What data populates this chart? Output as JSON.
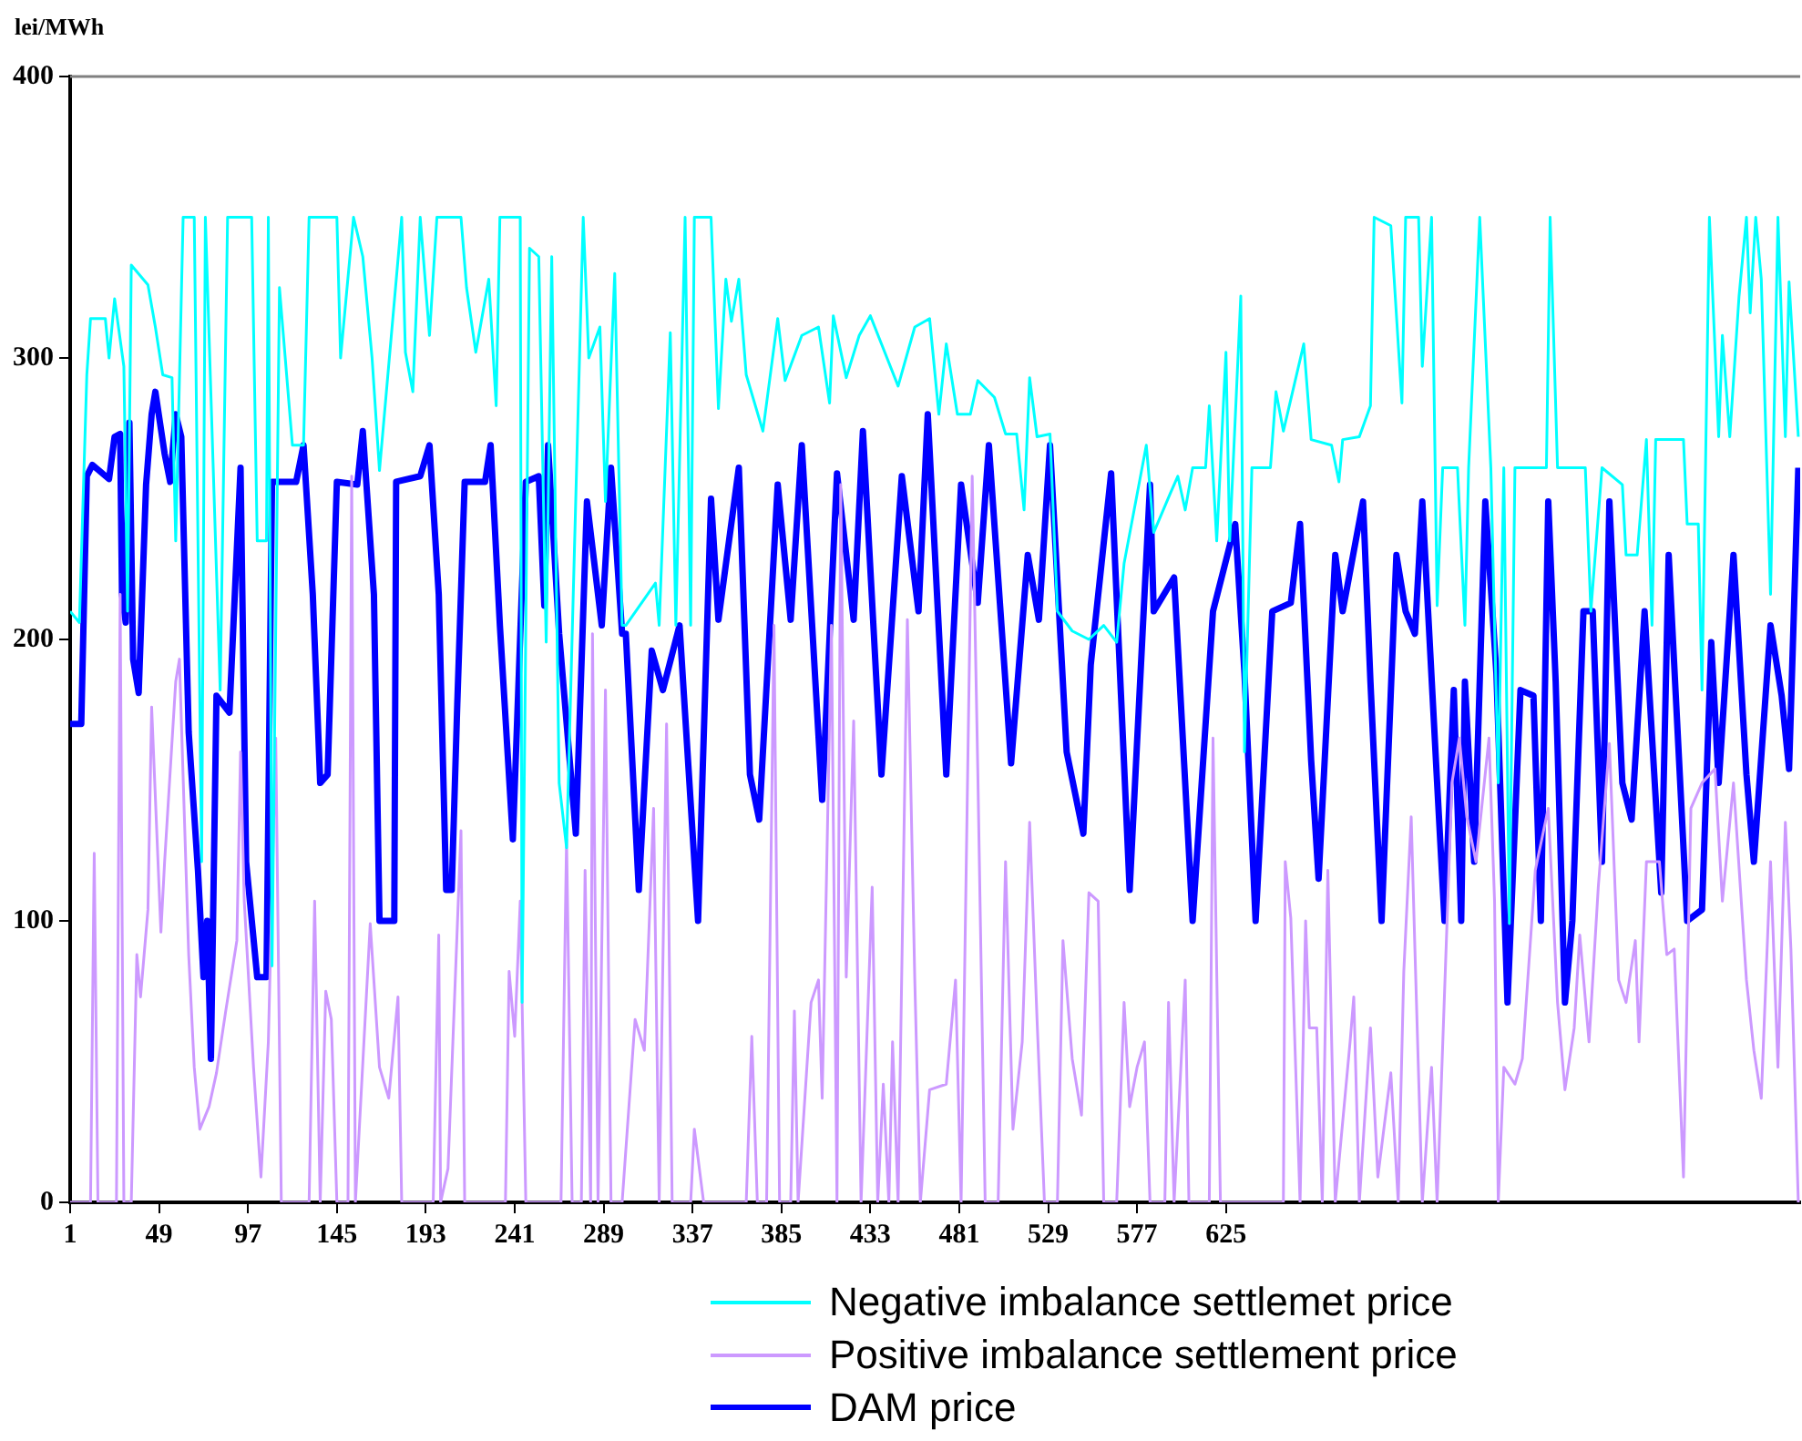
{
  "chart_data": {
    "type": "line",
    "ylabel": "lei/MWh",
    "xlim": [
      1,
      935
    ],
    "xticks": [
      1,
      49,
      97,
      145,
      193,
      241,
      289,
      337,
      385,
      433,
      481,
      529,
      577,
      625
    ],
    "ylim": [
      0,
      400
    ],
    "yticks": [
      0,
      100,
      200,
      300,
      400
    ],
    "grid": false,
    "legend": "bottom",
    "marker": "none",
    "line_style": "solid",
    "series": [
      {
        "name": "Negative imbalance settlemet price",
        "color": "#00ffff",
        "x": [
          1,
          6,
          10,
          12,
          20,
          22,
          25,
          30,
          32,
          34,
          43,
          47,
          51,
          56,
          58,
          62,
          68,
          72,
          74,
          82,
          86,
          99,
          102,
          107,
          108,
          110,
          114,
          121,
          127,
          130,
          145,
          147,
          154,
          159,
          164,
          168,
          180,
          182,
          186,
          190,
          195,
          199,
          212,
          215,
          220,
          227,
          231,
          233,
          244,
          245,
          249,
          254,
          258,
          261,
          265,
          269,
          278,
          281,
          287,
          290,
          295,
          299,
          301,
          317,
          319,
          325,
          328,
          333,
          336,
          338,
          347,
          349,
          351,
          355,
          358,
          362,
          366,
          375,
          383,
          387,
          396,
          405,
          411,
          413,
          420,
          427,
          433,
          439,
          448,
          457,
          465,
          470,
          474,
          480,
          487,
          491,
          500,
          506,
          512,
          516,
          519,
          523,
          530,
          534,
          542,
          551,
          559,
          566,
          570,
          582,
          586,
          595,
          599,
          603,
          607,
          614,
          616,
          620,
          625,
          627,
          633,
          635,
          639,
          649,
          652,
          656,
          667,
          671,
          682,
          686,
          688,
          697,
          703,
          705,
          714,
          720,
          722,
          729,
          731,
          736,
          739,
          742,
          750,
          754,
          756,
          762,
          768,
          772,
          775,
          778,
          781,
          798,
          800,
          804,
          819,
          822,
          828,
          839,
          841,
          847,
          852,
          855,
          857,
          872,
          874,
          880,
          882,
          886,
          891,
          893,
          897,
          902,
          906,
          908,
          911,
          914,
          919,
          923,
          927,
          929,
          934
        ],
        "values": [
          210,
          206,
          294,
          314,
          314,
          300,
          321,
          297,
          210,
          333,
          326,
          311,
          294,
          293,
          235,
          350,
          350,
          121,
          350,
          182,
          350,
          350,
          235,
          235,
          350,
          84,
          325,
          269,
          269,
          350,
          350,
          300,
          350,
          336,
          300,
          260,
          350,
          302,
          288,
          350,
          308,
          350,
          350,
          325,
          302,
          328,
          283,
          350,
          350,
          71,
          339,
          336,
          199,
          336,
          149,
          126,
          350,
          300,
          311,
          249,
          330,
          205,
          205,
          220,
          205,
          309,
          205,
          350,
          205,
          350,
          350,
          316,
          282,
          328,
          313,
          328,
          294,
          274,
          314,
          292,
          308,
          311,
          284,
          315,
          293,
          308,
          315,
          305,
          290,
          311,
          314,
          280,
          305,
          280,
          280,
          292,
          286,
          273,
          273,
          246,
          293,
          272,
          273,
          210,
          203,
          200,
          205,
          199,
          227,
          269,
          238,
          252,
          258,
          246,
          261,
          261,
          283,
          235,
          302,
          235,
          322,
          160,
          261,
          261,
          288,
          274,
          305,
          271,
          269,
          256,
          271,
          272,
          283,
          350,
          347,
          284,
          350,
          350,
          297,
          350,
          212,
          261,
          261,
          205,
          261,
          350,
          261,
          149,
          261,
          99,
          261,
          261,
          350,
          261,
          261,
          210,
          261,
          255,
          230,
          230,
          271,
          205,
          271,
          271,
          241,
          241,
          182,
          350,
          272,
          308,
          272,
          322,
          350,
          316,
          350,
          328,
          216,
          350,
          272,
          327,
          272
        ]
      },
      {
        "name": "Positive imbalance settlement price",
        "color": "#cc99ff",
        "x": [
          1,
          12,
          14,
          16,
          26,
          28,
          30,
          34,
          37,
          39,
          43,
          45,
          50,
          52,
          58,
          60,
          65,
          68,
          71,
          76,
          80,
          85,
          91,
          93,
          95,
          100,
          104,
          108,
          112,
          115,
          130,
          133,
          136,
          139,
          142,
          145,
          151,
          153,
          155,
          163,
          168,
          173,
          178,
          180,
          197,
          200,
          201,
          205,
          212,
          214,
          236,
          238,
          241,
          244,
          247,
          266,
          269,
          272,
          277,
          279,
          282,
          283,
          286,
          290,
          293,
          299,
          306,
          311,
          316,
          319,
          323,
          326,
          336,
          338,
          343,
          366,
          369,
          372,
          377,
          381,
          384,
          390,
          392,
          394,
          401,
          405,
          407,
          412,
          415,
          417,
          420,
          424,
          428,
          434,
          437,
          440,
          443,
          445,
          448,
          453,
          457,
          460,
          465,
          474,
          479,
          482,
          488,
          491,
          495,
          502,
          506,
          510,
          515,
          519,
          523,
          527,
          534,
          537,
          542,
          547,
          551,
          556,
          559,
          566,
          570,
          573,
          577,
          581,
          584,
          592,
          594,
          597,
          603,
          605,
          616,
          618,
          622,
          656,
          657,
          660,
          665,
          668,
          670,
          674,
          677,
          680,
          684,
          692,
          694,
          697,
          703,
          707,
          714,
          718,
          721,
          725,
          727,
          731,
          736,
          739,
          747,
          751,
          755,
          760,
          767,
          770,
          772,
          775,
          781,
          785,
          792,
          799,
          804,
          808,
          813,
          816,
          821,
          826,
          832,
          837,
          841,
          846,
          848,
          852,
          859,
          863,
          867,
          872,
          876,
          882,
          889,
          893,
          899,
          906,
          910,
          914,
          919,
          923,
          927,
          930,
          934
        ],
        "values": [
          0,
          0,
          124,
          0,
          0,
          216,
          0,
          0,
          88,
          73,
          104,
          176,
          96,
          121,
          185,
          193,
          88,
          48,
          26,
          34,
          46,
          68,
          93,
          160,
          107,
          48,
          9,
          57,
          165,
          0,
          0,
          107,
          0,
          75,
          65,
          0,
          0,
          258,
          0,
          99,
          48,
          37,
          73,
          0,
          0,
          95,
          0,
          12,
          132,
          0,
          0,
          82,
          59,
          107,
          0,
          0,
          129,
          0,
          0,
          118,
          0,
          202,
          0,
          182,
          0,
          0,
          65,
          54,
          140,
          0,
          170,
          0,
          0,
          26,
          0,
          0,
          59,
          0,
          0,
          205,
          0,
          0,
          68,
          0,
          71,
          79,
          37,
          205,
          0,
          255,
          80,
          171,
          0,
          112,
          0,
          42,
          0,
          57,
          0,
          207,
          79,
          0,
          40,
          42,
          79,
          0,
          258,
          154,
          0,
          0,
          121,
          26,
          57,
          135,
          65,
          0,
          0,
          93,
          51,
          31,
          110,
          107,
          0,
          0,
          71,
          34,
          48,
          57,
          0,
          0,
          71,
          0,
          79,
          0,
          0,
          165,
          0,
          0,
          121,
          101,
          0,
          100,
          62,
          62,
          0,
          118,
          0,
          57,
          73,
          0,
          62,
          9,
          46,
          0,
          82,
          137,
          90,
          0,
          48,
          0,
          149,
          165,
          137,
          121,
          165,
          107,
          0,
          48,
          42,
          51,
          118,
          140,
          71,
          40,
          62,
          95,
          57,
          112,
          163,
          79,
          71,
          93,
          57,
          121,
          121,
          88,
          90,
          9,
          140,
          149,
          154,
          107,
          149,
          79,
          54,
          37,
          121,
          48,
          135,
          90,
          0
        ]
      },
      {
        "name": "DAM price",
        "color": "#0000ff",
        "x": [
          1,
          7,
          10,
          13,
          22,
          25,
          28,
          29,
          31,
          33,
          35,
          38,
          42,
          45,
          47,
          52,
          55,
          58,
          61,
          65,
          70,
          73,
          75,
          77,
          80,
          87,
          93,
          96,
          102,
          107,
          110,
          123,
          127,
          132,
          136,
          140,
          145,
          156,
          159,
          165,
          168,
          176,
          177,
          190,
          195,
          200,
          204,
          207,
          210,
          214,
          225,
          228,
          233,
          240,
          247,
          254,
          257,
          259,
          265,
          274,
          280,
          288,
          293,
          299,
          301,
          308,
          315,
          321,
          330,
          340,
          347,
          351,
          362,
          368,
          373,
          383,
          390,
          396,
          407,
          415,
          424,
          429,
          439,
          450,
          459,
          464,
          474,
          482,
          491,
          497,
          509,
          518,
          524,
          530,
          539,
          548,
          552,
          563,
          573,
          584,
          586,
          597,
          607,
          618,
          630,
          635,
          641,
          650,
          660,
          665,
          671,
          675,
          684,
          688,
          699,
          703,
          709,
          717,
          722,
          727,
          731,
          739,
          743,
          748,
          752,
          754,
          759,
          765,
          771,
          777,
          784,
          791,
          795,
          799,
          803,
          808,
          812,
          818,
          823,
          828,
          832,
          839,
          844,
          851,
          860,
          864,
          874,
          882,
          887,
          891,
          899,
          906,
          910,
          919,
          925,
          929,
          934
        ],
        "values": [
          170,
          170,
          258,
          262,
          257,
          272,
          273,
          216,
          206,
          277,
          193,
          181,
          255,
          280,
          288,
          266,
          256,
          280,
          272,
          167,
          118,
          80,
          100,
          51,
          180,
          174,
          261,
          121,
          80,
          80,
          256,
          256,
          269,
          216,
          149,
          152,
          256,
          255,
          274,
          216,
          100,
          100,
          256,
          258,
          269,
          216,
          111,
          111,
          177,
          256,
          256,
          269,
          205,
          129,
          256,
          258,
          212,
          269,
          202,
          131,
          249,
          205,
          261,
          202,
          202,
          111,
          196,
          182,
          205,
          100,
          250,
          207,
          261,
          152,
          136,
          255,
          207,
          269,
          143,
          259,
          207,
          274,
          152,
          258,
          210,
          280,
          152,
          255,
          213,
          269,
          156,
          230,
          207,
          269,
          160,
          131,
          191,
          259,
          111,
          255,
          210,
          222,
          100,
          210,
          241,
          188,
          100,
          210,
          213,
          241,
          157,
          115,
          230,
          210,
          249,
          185,
          100,
          230,
          210,
          202,
          249,
          149,
          100,
          182,
          100,
          185,
          121,
          249,
          188,
          71,
          182,
          180,
          100,
          249,
          185,
          71,
          100,
          210,
          210,
          121,
          249,
          149,
          136,
          210,
          110,
          230,
          100,
          104,
          199,
          149,
          230,
          152,
          121,
          205,
          180,
          154,
          261
        ]
      }
    ]
  }
}
